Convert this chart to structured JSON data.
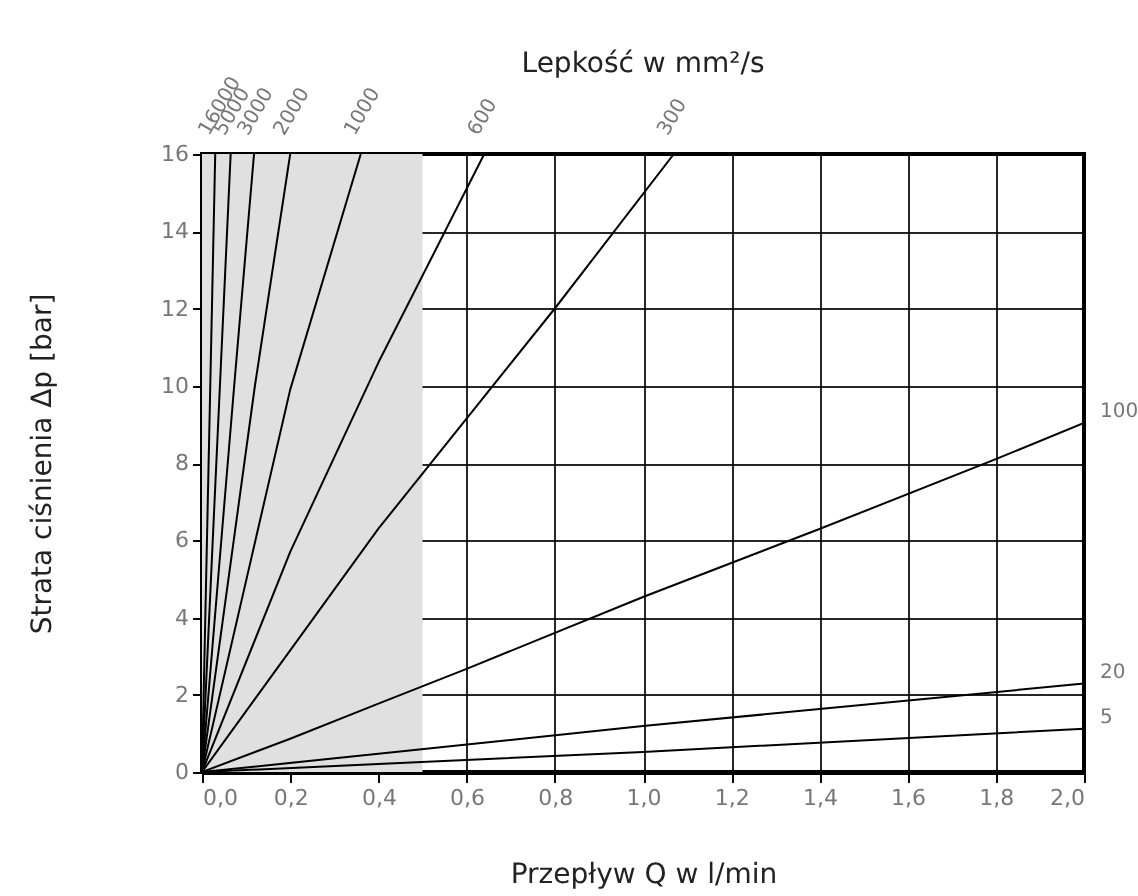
{
  "chart_data": {
    "type": "line",
    "legend_title": "Lepkość w mm²/s",
    "xlabel": "Przepływ Q w l/min",
    "ylabel": "Strata ciśnienia Δp [bar]",
    "series": [
      {
        "name": "16000",
        "color": "#000000",
        "x": [
          0,
          0.03
        ],
        "values": [
          0,
          16
        ]
      },
      {
        "name": "5000",
        "color": "#000000",
        "x": [
          0,
          0.065
        ],
        "values": [
          0,
          16
        ]
      },
      {
        "name": "3000",
        "color": "#000000",
        "x": [
          0,
          0.073,
          0.118
        ],
        "values": [
          0,
          10,
          16
        ]
      },
      {
        "name": "2000",
        "color": "#000000",
        "x": [
          0,
          0.12,
          0.2
        ],
        "values": [
          0,
          10,
          16
        ]
      },
      {
        "name": "1000",
        "color": "#000000",
        "x": [
          0,
          0.2,
          0.36
        ],
        "values": [
          0,
          9.9,
          16
        ]
      },
      {
        "name": "600",
        "color": "#000000",
        "x": [
          0,
          0.2,
          0.4,
          0.64
        ],
        "values": [
          0,
          5.7,
          10.6,
          16
        ]
      },
      {
        "name": "300",
        "color": "#000000",
        "x": [
          0,
          0.2,
          0.4,
          0.8,
          1.07
        ],
        "values": [
          0,
          3.15,
          6.3,
          12,
          16
        ]
      },
      {
        "name": "100",
        "color": "#000000",
        "x": [
          0,
          0.2,
          0.4,
          0.6,
          1.0,
          1.4,
          1.8,
          2.0
        ],
        "values": [
          0,
          0.86,
          1.77,
          2.67,
          4.53,
          6.29,
          8.1,
          9.04
        ]
      },
      {
        "name": "20",
        "color": "#000000",
        "x": [
          0,
          0.4,
          1.0,
          2.0
        ],
        "values": [
          0,
          0.47,
          1.19,
          2.29
        ]
      },
      {
        "name": "5",
        "color": "#000000",
        "x": [
          0,
          1.0,
          2.0
        ],
        "values": [
          0,
          0.52,
          1.12
        ]
      }
    ],
    "bands": [
      {
        "axis": "x",
        "from": 0,
        "to": 0.5,
        "color": "#e0e0e0"
      }
    ],
    "xlim": [
      0,
      2
    ],
    "ylim": [
      0,
      16
    ],
    "xticks": [
      {
        "value": 0,
        "label": "0,0"
      },
      {
        "value": 0.2,
        "label": "0,2"
      },
      {
        "value": 0.4,
        "label": "0,4"
      },
      {
        "value": 0.6,
        "label": "0,6"
      },
      {
        "value": 0.8,
        "label": "0,8"
      },
      {
        "value": 1,
        "label": "1,0"
      },
      {
        "value": 1.2,
        "label": "1,2"
      },
      {
        "value": 1.4,
        "label": "1,4"
      },
      {
        "value": 1.6,
        "label": "1,6"
      },
      {
        "value": 1.8,
        "label": "1,8"
      },
      {
        "value": 2,
        "label": "2,0"
      }
    ],
    "yticks": [
      0,
      2,
      4,
      6,
      8,
      10,
      12,
      14,
      16
    ],
    "grid": true
  }
}
